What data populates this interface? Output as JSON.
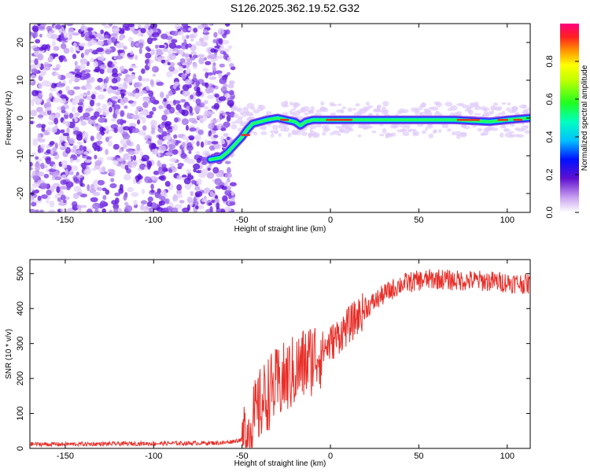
{
  "figure": {
    "title": "S126.2025.362.19.52.G32"
  },
  "colors": {
    "axis": "#000000",
    "snr_line": "#e8302a",
    "noise": "#7a2ee0",
    "band_core": "#e83020"
  },
  "chart_data": [
    {
      "type": "heatmap",
      "name": "spectrogram",
      "xlabel": "Height of straight line (km)",
      "ylabel": "Frequency (Hz)",
      "xlim": [
        -170,
        113
      ],
      "ylim": [
        -25,
        25
      ],
      "x_ticks": [
        -150,
        -100,
        -50,
        0,
        50,
        100
      ],
      "y_ticks": [
        -20,
        -10,
        0,
        10,
        20
      ],
      "colorbar": {
        "label": "Normalized spectral amplitude",
        "range": [
          0,
          1
        ],
        "ticks": [
          "0.0",
          "0.2",
          "0.4",
          "0.6",
          "0.8"
        ]
      },
      "signal_track": {
        "x": [
          -68,
          -62,
          -58,
          -54,
          -50,
          -47,
          -44,
          -40,
          -36,
          -30,
          -25,
          -20,
          -17,
          -14,
          -10,
          -5,
          0,
          10,
          30,
          50,
          70,
          90,
          100,
          113
        ],
        "y": [
          -11,
          -10.5,
          -9,
          -7,
          -5,
          -3,
          -1.5,
          -1,
          -0.5,
          0,
          -0.5,
          -1,
          -2,
          -1,
          -0.5,
          -0.5,
          -0.5,
          -0.5,
          -0.5,
          -0.5,
          -0.5,
          -1,
          -0.5,
          0
        ]
      }
    },
    {
      "type": "line",
      "name": "snr",
      "xlabel": "Height of straight line (km)",
      "ylabel": "SNR (10 * v/v)",
      "xlim": [
        -170,
        113
      ],
      "ylim": [
        0,
        540
      ],
      "x_ticks": [
        -150,
        -100,
        -50,
        0,
        50,
        100
      ],
      "y_ticks": [
        0,
        100,
        200,
        300,
        400,
        500
      ],
      "series": [
        {
          "name": "SNR",
          "x": [
            -170,
            -150,
            -100,
            -60,
            -50,
            -45,
            -40,
            -35,
            -30,
            -25,
            -20,
            -15,
            -10,
            -5,
            0,
            10,
            20,
            30,
            40,
            50,
            60,
            70,
            80,
            90,
            100,
            113
          ],
          "y": [
            12,
            12,
            14,
            16,
            25,
            60,
            120,
            160,
            180,
            200,
            220,
            240,
            260,
            280,
            300,
            350,
            400,
            440,
            470,
            480,
            485,
            480,
            480,
            478,
            475,
            470
          ]
        }
      ]
    }
  ]
}
